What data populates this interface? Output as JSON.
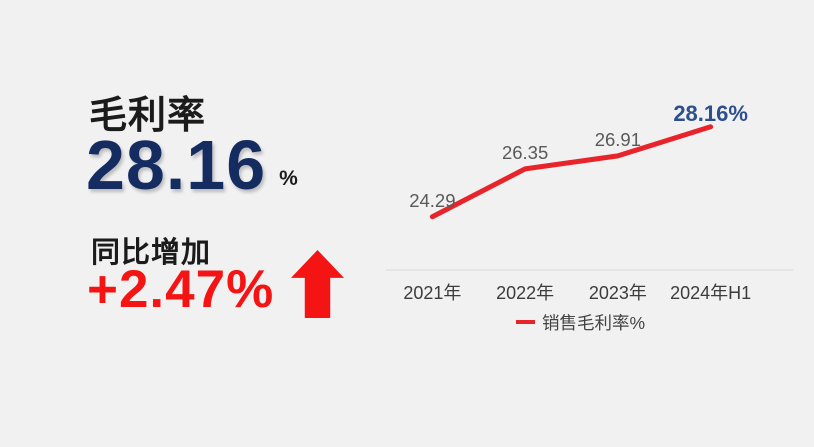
{
  "background": "#f1f1f2",
  "colors": {
    "navy": "#152c61",
    "red": "#f41414",
    "dark_text": "#1b1b1b",
    "data_label_gray": "#595959",
    "axis_label_gray": "#3c3c3c",
    "legend_text_gray": "#434343",
    "axis_line": "#e0e0e0",
    "highlight_blue": "#2c4f8e"
  },
  "left_panel": {
    "title": "毛利率",
    "main_value": "28.16",
    "main_unit": "%",
    "change_label": "同比增加",
    "change_value": "+2.47%",
    "arrow_icon": "up-arrow-icon"
  },
  "chart_data": {
    "type": "line",
    "title": "",
    "categories": [
      "2021年",
      "2022年",
      "2023年",
      "2024年H1"
    ],
    "series": [
      {
        "name": "销售毛利率%",
        "values": [
          24.29,
          26.35,
          26.91,
          28.16
        ]
      }
    ],
    "data_labels": [
      "24.29",
      "26.35",
      "26.91",
      "28.16%"
    ],
    "highlight_index": 3,
    "line_color": "#e8242b",
    "ylim": [
      22,
      30
    ],
    "grid": false,
    "legend": {
      "label": "销售毛利率%",
      "position": "bottom"
    }
  }
}
